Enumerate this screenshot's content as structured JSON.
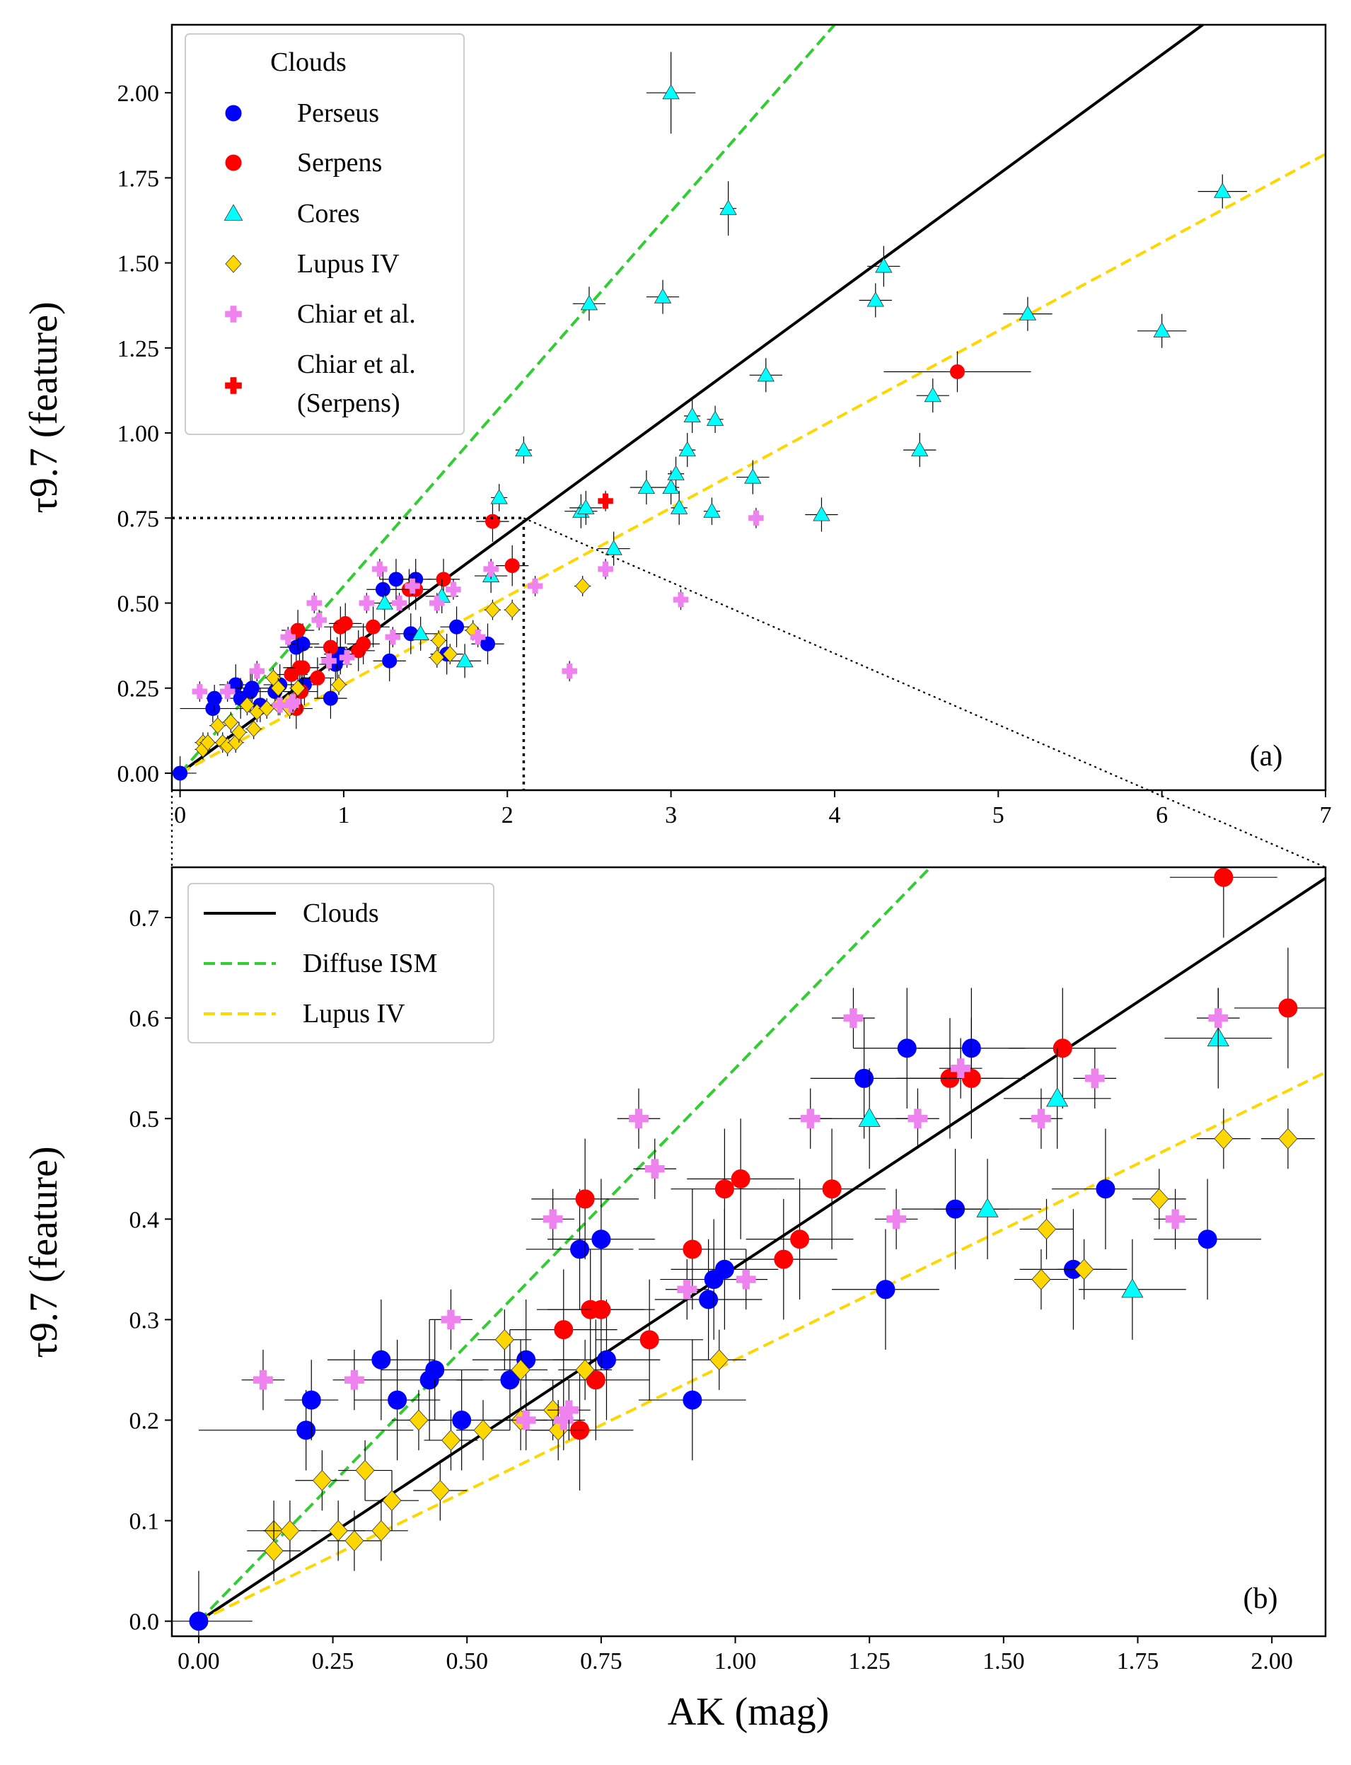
{
  "colors": {
    "perseus": "#0000ff",
    "serpens": "#ff0000",
    "cores": "#00ffff",
    "lupus": "#ffd700",
    "chiar": "#ee82ee",
    "chiar_serpens": "#ff0000",
    "fit_clouds": "#000000",
    "fit_diffuse": "#32cd32",
    "fit_lupus": "#ffd700"
  },
  "chart_data": [
    {
      "id": "panel-a",
      "type": "scatter",
      "panel_label": "(a)",
      "xlabel": "",
      "ylabel": "τ9.7 (feature)",
      "xlim": [
        -0.05,
        7.0
      ],
      "ylim": [
        -0.05,
        2.2
      ],
      "xticks": [
        0,
        1,
        2,
        3,
        4,
        5,
        6,
        7
      ],
      "xtick_labels": [
        "0",
        "1",
        "2",
        "3",
        "4",
        "5",
        "6",
        "7"
      ],
      "yticks": [
        0.0,
        0.25,
        0.5,
        0.75,
        1.0,
        1.25,
        1.5,
        1.75,
        2.0
      ],
      "ytick_labels": [
        "0.00",
        "0.25",
        "0.50",
        "0.75",
        "1.00",
        "1.25",
        "1.50",
        "1.75",
        "2.00"
      ],
      "legend": {
        "title": "Clouds",
        "position": "upper-left",
        "entries": [
          {
            "label": "Perseus",
            "series": "perseus"
          },
          {
            "label": "Serpens",
            "series": "serpens"
          },
          {
            "label": "Cores",
            "series": "cores"
          },
          {
            "label": "Lupus IV",
            "series": "lupus"
          },
          {
            "label": "Chiar et al.",
            "series": "chiar"
          },
          {
            "label": "Chiar et al.",
            "label2": "(Serpens)",
            "series": "chiar_serpens"
          }
        ]
      },
      "zoom_box": {
        "x": 2.1,
        "y": 0.75
      },
      "lines": [
        {
          "name": "Clouds",
          "slope": 0.352,
          "color": "fit_clouds",
          "dash": "solid"
        },
        {
          "name": "Diffuse ISM",
          "slope": 0.55,
          "color": "fit_diffuse",
          "dash": "dashed"
        },
        {
          "name": "Lupus IV",
          "slope": 0.26,
          "color": "fit_lupus",
          "dash": "dashed"
        }
      ],
      "series": [
        {
          "name": "Perseus",
          "marker": "circle",
          "color": "perseus",
          "points": [
            [
              0.0,
              0.0,
              0.1,
              0.05
            ],
            [
              0.2,
              0.19,
              0.2,
              0.04
            ],
            [
              0.21,
              0.22,
              0.05,
              0.04
            ],
            [
              0.34,
              0.26,
              0.1,
              0.06
            ],
            [
              0.37,
              0.22,
              0.08,
              0.06
            ],
            [
              0.43,
              0.24,
              0.1,
              0.06
            ],
            [
              0.44,
              0.25,
              0.1,
              0.05
            ],
            [
              0.49,
              0.2,
              0.1,
              0.05
            ],
            [
              0.58,
              0.24,
              0.1,
              0.05
            ],
            [
              0.61,
              0.26,
              0.1,
              0.06
            ],
            [
              0.71,
              0.37,
              0.1,
              0.06
            ],
            [
              0.75,
              0.38,
              0.1,
              0.06
            ],
            [
              0.76,
              0.26,
              0.1,
              0.06
            ],
            [
              0.92,
              0.22,
              0.1,
              0.06
            ],
            [
              0.95,
              0.32,
              0.1,
              0.06
            ],
            [
              0.96,
              0.34,
              0.1,
              0.06
            ],
            [
              0.98,
              0.35,
              0.1,
              0.06
            ],
            [
              1.24,
              0.54,
              0.1,
              0.06
            ],
            [
              1.28,
              0.33,
              0.1,
              0.06
            ],
            [
              1.32,
              0.57,
              0.1,
              0.06
            ],
            [
              1.41,
              0.41,
              0.1,
              0.06
            ],
            [
              1.44,
              0.57,
              0.1,
              0.06
            ],
            [
              1.63,
              0.35,
              0.1,
              0.06
            ],
            [
              1.69,
              0.43,
              0.1,
              0.06
            ],
            [
              1.88,
              0.38,
              0.1,
              0.06
            ]
          ]
        },
        {
          "name": "Serpens",
          "marker": "circle",
          "color": "serpens",
          "points": [
            [
              0.68,
              0.29,
              0.1,
              0.06
            ],
            [
              0.71,
              0.19,
              0.1,
              0.06
            ],
            [
              0.72,
              0.42,
              0.1,
              0.06
            ],
            [
              0.73,
              0.31,
              0.1,
              0.06
            ],
            [
              0.74,
              0.24,
              0.1,
              0.06
            ],
            [
              0.75,
              0.31,
              0.1,
              0.06
            ],
            [
              0.84,
              0.28,
              0.1,
              0.06
            ],
            [
              0.92,
              0.37,
              0.1,
              0.06
            ],
            [
              0.98,
              0.43,
              0.1,
              0.06
            ],
            [
              1.01,
              0.44,
              0.1,
              0.06
            ],
            [
              1.09,
              0.36,
              0.1,
              0.06
            ],
            [
              1.12,
              0.38,
              0.1,
              0.06
            ],
            [
              1.18,
              0.43,
              0.1,
              0.06
            ],
            [
              1.4,
              0.54,
              0.1,
              0.06
            ],
            [
              1.44,
              0.54,
              0.1,
              0.06
            ],
            [
              1.61,
              0.57,
              0.1,
              0.06
            ],
            [
              1.91,
              0.74,
              0.1,
              0.06
            ],
            [
              2.03,
              0.61,
              0.1,
              0.06
            ],
            [
              4.75,
              1.18,
              0.45,
              0.06
            ]
          ]
        },
        {
          "name": "Cores",
          "marker": "triangle",
          "color": "cores",
          "points": [
            [
              1.25,
              0.5,
              0.1,
              0.05
            ],
            [
              1.47,
              0.41,
              0.1,
              0.05
            ],
            [
              1.6,
              0.52,
              0.1,
              0.05
            ],
            [
              1.74,
              0.33,
              0.1,
              0.05
            ],
            [
              1.9,
              0.58,
              0.1,
              0.05
            ],
            [
              1.95,
              0.81,
              0.05,
              0.04
            ],
            [
              2.1,
              0.95,
              0.05,
              0.04
            ],
            [
              2.45,
              0.77,
              0.1,
              0.05
            ],
            [
              2.48,
              0.78,
              0.1,
              0.05
            ],
            [
              2.5,
              1.38,
              0.1,
              0.05
            ],
            [
              2.65,
              0.66,
              0.1,
              0.05
            ],
            [
              2.85,
              0.84,
              0.1,
              0.05
            ],
            [
              2.95,
              1.4,
              0.1,
              0.05
            ],
            [
              3.0,
              2.0,
              0.15,
              0.12
            ],
            [
              3.0,
              0.84,
              0.05,
              0.05
            ],
            [
              3.03,
              0.88,
              0.05,
              0.05
            ],
            [
              3.05,
              0.78,
              0.05,
              0.05
            ],
            [
              3.1,
              0.95,
              0.05,
              0.05
            ],
            [
              3.13,
              1.05,
              0.05,
              0.05
            ],
            [
              3.25,
              0.77,
              0.05,
              0.04
            ],
            [
              3.27,
              1.04,
              0.05,
              0.04
            ],
            [
              3.35,
              1.66,
              0.05,
              0.08
            ],
            [
              3.5,
              0.87,
              0.1,
              0.05
            ],
            [
              3.58,
              1.17,
              0.1,
              0.05
            ],
            [
              3.92,
              0.76,
              0.1,
              0.05
            ],
            [
              4.25,
              1.39,
              0.1,
              0.05
            ],
            [
              4.3,
              1.49,
              0.1,
              0.06
            ],
            [
              4.52,
              0.95,
              0.1,
              0.05
            ],
            [
              4.6,
              1.11,
              0.1,
              0.05
            ],
            [
              5.18,
              1.35,
              0.15,
              0.05
            ],
            [
              6.0,
              1.3,
              0.15,
              0.05
            ],
            [
              6.37,
              1.71,
              0.15,
              0.05
            ]
          ]
        },
        {
          "name": "Lupus IV",
          "marker": "diamond",
          "color": "lupus",
          "points": [
            [
              0.14,
              0.09,
              0.05,
              0.03
            ],
            [
              0.14,
              0.07,
              0.05,
              0.03
            ],
            [
              0.17,
              0.09,
              0.05,
              0.03
            ],
            [
              0.23,
              0.14,
              0.05,
              0.03
            ],
            [
              0.26,
              0.09,
              0.05,
              0.03
            ],
            [
              0.29,
              0.08,
              0.05,
              0.03
            ],
            [
              0.31,
              0.15,
              0.05,
              0.03
            ],
            [
              0.34,
              0.09,
              0.05,
              0.03
            ],
            [
              0.36,
              0.12,
              0.05,
              0.03
            ],
            [
              0.41,
              0.2,
              0.05,
              0.03
            ],
            [
              0.45,
              0.13,
              0.05,
              0.03
            ],
            [
              0.47,
              0.18,
              0.05,
              0.03
            ],
            [
              0.53,
              0.19,
              0.05,
              0.03
            ],
            [
              0.57,
              0.28,
              0.05,
              0.03
            ],
            [
              0.6,
              0.2,
              0.05,
              0.03
            ],
            [
              0.6,
              0.25,
              0.05,
              0.03
            ],
            [
              0.66,
              0.21,
              0.05,
              0.03
            ],
            [
              0.67,
              0.19,
              0.05,
              0.03
            ],
            [
              0.72,
              0.25,
              0.05,
              0.03
            ],
            [
              0.97,
              0.26,
              0.05,
              0.03
            ],
            [
              1.57,
              0.34,
              0.05,
              0.03
            ],
            [
              1.58,
              0.39,
              0.05,
              0.03
            ],
            [
              1.65,
              0.35,
              0.05,
              0.03
            ],
            [
              1.79,
              0.42,
              0.05,
              0.03
            ],
            [
              1.91,
              0.48,
              0.05,
              0.03
            ],
            [
              2.03,
              0.48,
              0.05,
              0.03
            ],
            [
              2.46,
              0.55,
              0.05,
              0.03
            ]
          ]
        },
        {
          "name": "Chiar et al.",
          "marker": "plus",
          "color": "chiar",
          "points": [
            [
              0.12,
              0.24,
              0.04,
              0.03
            ],
            [
              0.29,
              0.24,
              0.04,
              0.03
            ],
            [
              0.47,
              0.3,
              0.04,
              0.03
            ],
            [
              0.61,
              0.2,
              0.04,
              0.03
            ],
            [
              0.66,
              0.4,
              0.04,
              0.03
            ],
            [
              0.68,
              0.2,
              0.04,
              0.03
            ],
            [
              0.69,
              0.21,
              0.04,
              0.03
            ],
            [
              0.82,
              0.5,
              0.04,
              0.03
            ],
            [
              0.85,
              0.45,
              0.04,
              0.03
            ],
            [
              0.91,
              0.33,
              0.04,
              0.03
            ],
            [
              1.02,
              0.34,
              0.04,
              0.03
            ],
            [
              1.14,
              0.5,
              0.04,
              0.03
            ],
            [
              1.22,
              0.6,
              0.04,
              0.03
            ],
            [
              1.3,
              0.4,
              0.04,
              0.03
            ],
            [
              1.34,
              0.5,
              0.04,
              0.03
            ],
            [
              1.42,
              0.55,
              0.04,
              0.03
            ],
            [
              1.57,
              0.5,
              0.04,
              0.03
            ],
            [
              1.67,
              0.54,
              0.04,
              0.03
            ],
            [
              1.82,
              0.4,
              0.04,
              0.03
            ],
            [
              1.9,
              0.6,
              0.04,
              0.03
            ],
            [
              2.17,
              0.55,
              0.04,
              0.03
            ],
            [
              2.38,
              0.3,
              0.04,
              0.03
            ],
            [
              2.6,
              0.6,
              0.04,
              0.03
            ],
            [
              3.06,
              0.51,
              0.04,
              0.03
            ],
            [
              3.52,
              0.75,
              0.04,
              0.03
            ]
          ]
        },
        {
          "name": "Chiar et al. (Serpens)",
          "marker": "plus",
          "color": "chiar_serpens",
          "points": [
            [
              2.6,
              0.8,
              0.04,
              0.03
            ]
          ]
        }
      ]
    },
    {
      "id": "panel-b",
      "type": "scatter",
      "panel_label": "(b)",
      "xlabel": "AK (mag)",
      "ylabel": "τ9.7 (feature)",
      "xlim": [
        -0.05,
        2.1
      ],
      "ylim": [
        -0.015,
        0.75
      ],
      "xticks": [
        0.0,
        0.25,
        0.5,
        0.75,
        1.0,
        1.25,
        1.5,
        1.75,
        2.0
      ],
      "xtick_labels": [
        "0.00",
        "0.25",
        "0.50",
        "0.75",
        "1.00",
        "1.25",
        "1.50",
        "1.75",
        "2.00"
      ],
      "yticks": [
        0.0,
        0.1,
        0.2,
        0.3,
        0.4,
        0.5,
        0.6,
        0.7
      ],
      "ytick_labels": [
        "0.0",
        "0.1",
        "0.2",
        "0.3",
        "0.4",
        "0.5",
        "0.6",
        "0.7"
      ],
      "legend": {
        "position": "upper-left",
        "entries": [
          {
            "label": "Clouds",
            "line": "fit_clouds",
            "dash": "solid"
          },
          {
            "label": "Diffuse ISM",
            "line": "fit_diffuse",
            "dash": "dashed"
          },
          {
            "label": "Lupus IV",
            "line": "fit_lupus",
            "dash": "dashed"
          }
        ]
      },
      "source_panel": "panel-a"
    }
  ]
}
